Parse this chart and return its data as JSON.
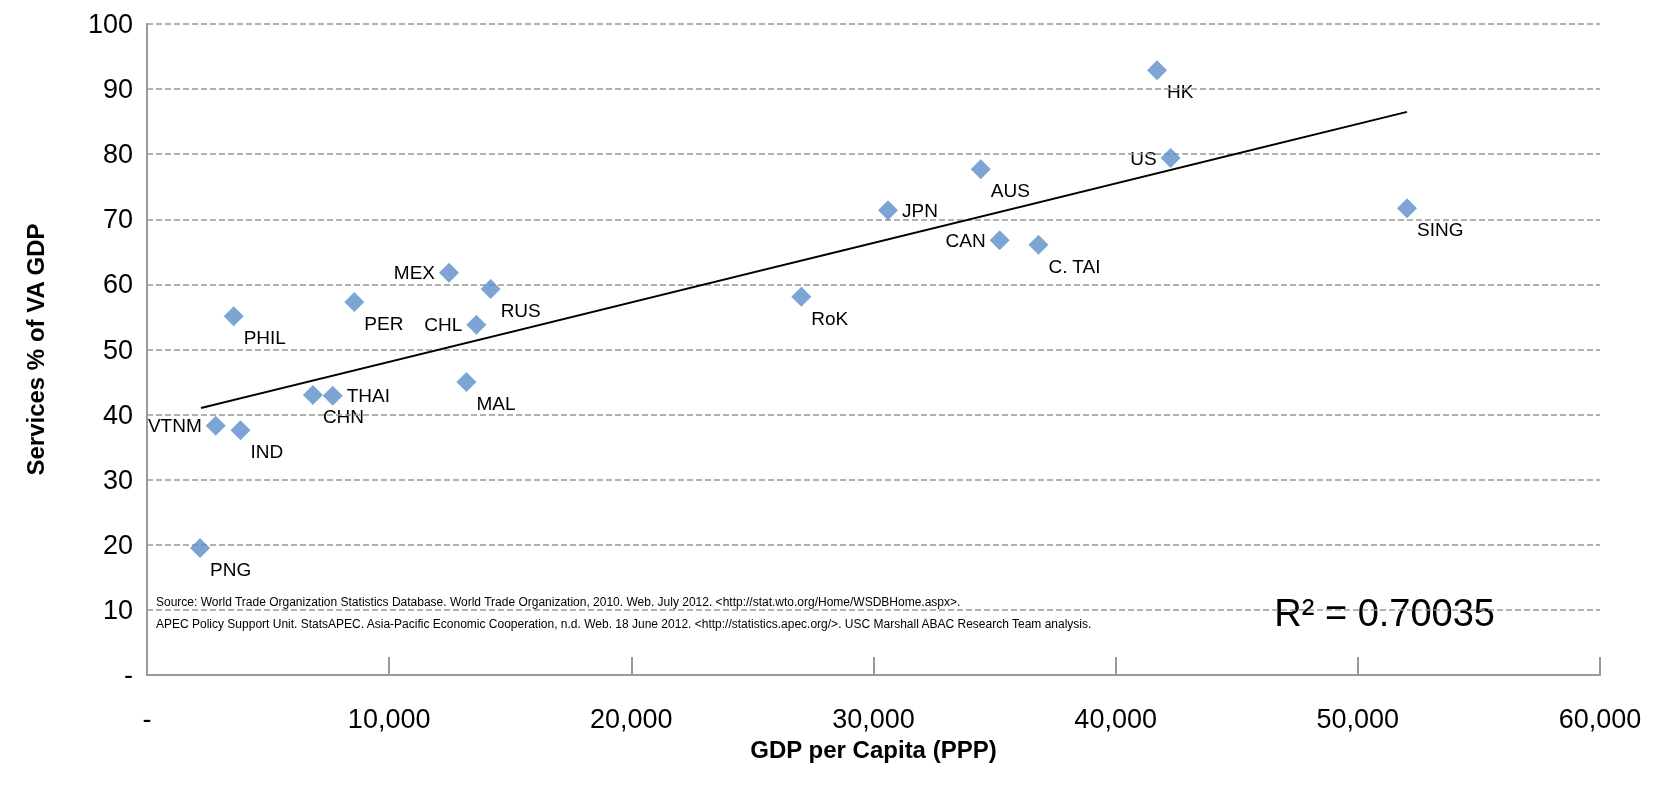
{
  "chart_data": {
    "type": "scatter",
    "xlabel": "GDP per Capita (PPP)",
    "ylabel": "Services % of VA GDP",
    "xlim": [
      0,
      60000
    ],
    "xticks": [
      {
        "value": 0,
        "label": "-"
      },
      {
        "value": 10000,
        "label": "10,000"
      },
      {
        "value": 20000,
        "label": "20,000"
      },
      {
        "value": 30000,
        "label": "30,000"
      },
      {
        "value": 40000,
        "label": "40,000"
      },
      {
        "value": 50000,
        "label": "50,000"
      },
      {
        "value": 60000,
        "label": "60,000"
      }
    ],
    "ylim": [
      0,
      100
    ],
    "yticks": [
      {
        "value": 0,
        "label": "-"
      },
      10,
      20,
      30,
      40,
      50,
      60,
      70,
      80,
      90,
      100
    ],
    "grid": "y",
    "marker": "diamond",
    "series": [
      {
        "color": "#5b8ec9",
        "x": [
          3580,
          8560,
          12470,
          14190,
          13600,
          27020,
          6850,
          7670,
          13190,
          2840,
          3860,
          2190,
          41710,
          42270,
          34430,
          30600,
          35210,
          36810,
          52030
        ],
        "values": [
          55.1,
          57.3,
          61.8,
          59.3,
          53.8,
          58.1,
          43.0,
          42.9,
          45.0,
          38.3,
          37.6,
          19.5,
          92.9,
          79.4,
          77.7,
          71.4,
          66.8,
          66.1,
          71.7
        ]
      },
      {
        "type": "line",
        "color": "#000000",
        "marker": "none",
        "x": [
          2230,
          52030
        ],
        "values": [
          41.0,
          86.5
        ]
      }
    ],
    "annotations": [
      {
        "text": "PHIL",
        "x": 3580,
        "y": 55.1
      },
      {
        "text": "PER",
        "x": 8560,
        "y": 57.3
      },
      {
        "text": "MEX",
        "x": 12470,
        "y": 61.8
      },
      {
        "text": "RUS",
        "x": 14190,
        "y": 59.3
      },
      {
        "text": "CHL",
        "x": 13600,
        "y": 53.8
      },
      {
        "text": "RoK",
        "x": 27020,
        "y": 58.1
      },
      {
        "text": "CHN",
        "x": 6850,
        "y": 43.0
      },
      {
        "text": "THAI",
        "x": 7670,
        "y": 42.9
      },
      {
        "text": "MAL",
        "x": 13190,
        "y": 45.0
      },
      {
        "text": "VTNM",
        "x": 2840,
        "y": 38.3
      },
      {
        "text": "IND",
        "x": 3860,
        "y": 37.6
      },
      {
        "text": "PNG",
        "x": 2190,
        "y": 19.5
      },
      {
        "text": "HK",
        "x": 41710,
        "y": 92.9
      },
      {
        "text": "US",
        "x": 42270,
        "y": 79.4
      },
      {
        "text": "AUS",
        "x": 34430,
        "y": 77.7
      },
      {
        "text": "JPN",
        "x": 30600,
        "y": 71.4
      },
      {
        "text": "CAN",
        "x": 35210,
        "y": 66.8
      },
      {
        "text": "C. TAI",
        "x": 36810,
        "y": 66.1
      },
      {
        "text": "SING",
        "x": 52030,
        "y": 71.7
      },
      "Source: World Trade Organization Statistics Database. World Trade Organization, 2010. Web. July 2012. <http://stat.wto.org/Home/WSDBHome.aspx>.",
      "APEC Policy Support Unit. StatsAPEC. Asia-Pacific Economic Cooperation, n.d. Web. 18 June 2012. <http://statistics.apec.org/>. USC Marshall ABAC Research Team analysis.",
      "R² = 0.70035"
    ]
  }
}
